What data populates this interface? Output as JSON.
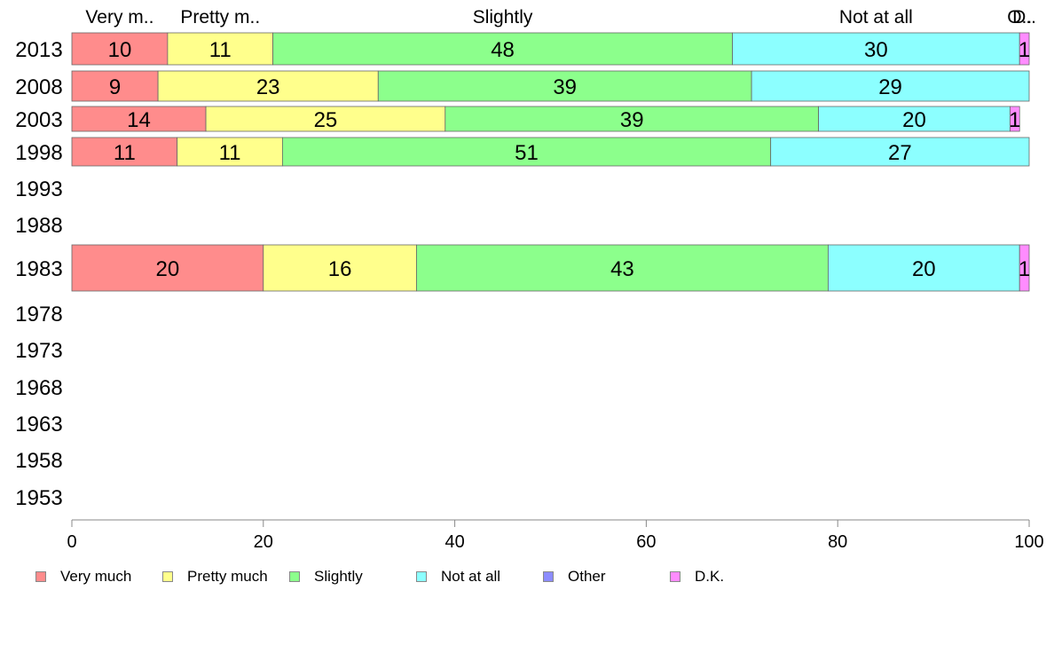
{
  "chart_data": {
    "type": "bar",
    "orientation": "horizontal",
    "stacked": true,
    "categories": [
      "2013",
      "2008",
      "2003",
      "1998",
      "1993",
      "1988",
      "1983",
      "1978",
      "1973",
      "1968",
      "1963",
      "1958",
      "1953"
    ],
    "series": [
      {
        "name": "Very much",
        "short": "Very m..",
        "color": "#ff8c8c",
        "values": [
          10,
          9,
          14,
          11,
          null,
          null,
          20,
          null,
          null,
          null,
          null,
          null,
          null
        ]
      },
      {
        "name": "Pretty much",
        "short": "Pretty m..",
        "color": "#ffff8c",
        "values": [
          11,
          23,
          25,
          11,
          null,
          null,
          16,
          null,
          null,
          null,
          null,
          null,
          null
        ]
      },
      {
        "name": "Slightly",
        "short": "Slightly",
        "color": "#8cff8c",
        "values": [
          48,
          39,
          39,
          51,
          null,
          null,
          43,
          null,
          null,
          null,
          null,
          null,
          null
        ]
      },
      {
        "name": "Not at all",
        "short": "Not at all",
        "color": "#8cffff",
        "values": [
          30,
          29,
          20,
          27,
          null,
          null,
          20,
          null,
          null,
          null,
          null,
          null,
          null
        ]
      },
      {
        "name": "Other",
        "short": "O..",
        "color": "#8c8cff",
        "values": [
          0,
          0,
          0,
          0,
          null,
          null,
          0,
          null,
          null,
          null,
          null,
          null,
          null
        ]
      },
      {
        "name": "D.K.",
        "short": "D..",
        "color": "#ff8cff",
        "values": [
          1,
          0,
          1,
          0,
          null,
          null,
          1,
          null,
          null,
          null,
          null,
          null,
          null
        ]
      }
    ],
    "xlim": [
      0,
      100
    ],
    "xticks": [
      0,
      20,
      40,
      60,
      80,
      100
    ],
    "legend_position": "bottom",
    "grid": false
  }
}
